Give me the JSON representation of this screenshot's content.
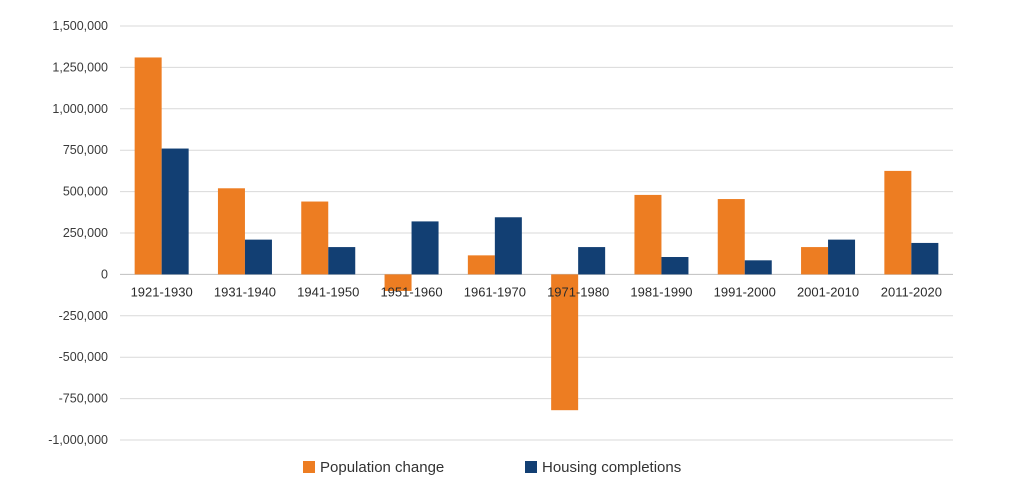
{
  "chart_data": {
    "type": "bar",
    "title": "",
    "xlabel": "",
    "ylabel": "",
    "categories": [
      "1921-1930",
      "1931-1940",
      "1941-1950",
      "1951-1960",
      "1961-1970",
      "1971-1980",
      "1981-1990",
      "1991-2000",
      "2001-2010",
      "2011-2020"
    ],
    "series": [
      {
        "name": "Population change",
        "color": "#ed7d22",
        "values": [
          1310000,
          520000,
          440000,
          -100000,
          115000,
          -820000,
          480000,
          455000,
          165000,
          625000
        ]
      },
      {
        "name": "Housing completions",
        "color": "#123f73",
        "values": [
          760000,
          210000,
          165000,
          320000,
          345000,
          165000,
          105000,
          85000,
          210000,
          190000
        ]
      }
    ],
    "ylim": [
      -1000000,
      1500000
    ],
    "yticks": [
      1500000,
      1250000,
      1000000,
      750000,
      500000,
      250000,
      0,
      -250000,
      -500000,
      -750000,
      -1000000
    ],
    "ytick_labels": [
      "1,500,000",
      "1,250,000",
      "1,000,000",
      "750,000",
      "500,000",
      "250,000",
      "0",
      "-250,000",
      "-500,000",
      "-750,000",
      "-1,000,000"
    ],
    "grid": true,
    "legend_position": "bottom-center"
  },
  "colors": {
    "gridline": "#d9d9d9",
    "zeroline": "#bfbfbf",
    "text": "#3a3a3a"
  }
}
